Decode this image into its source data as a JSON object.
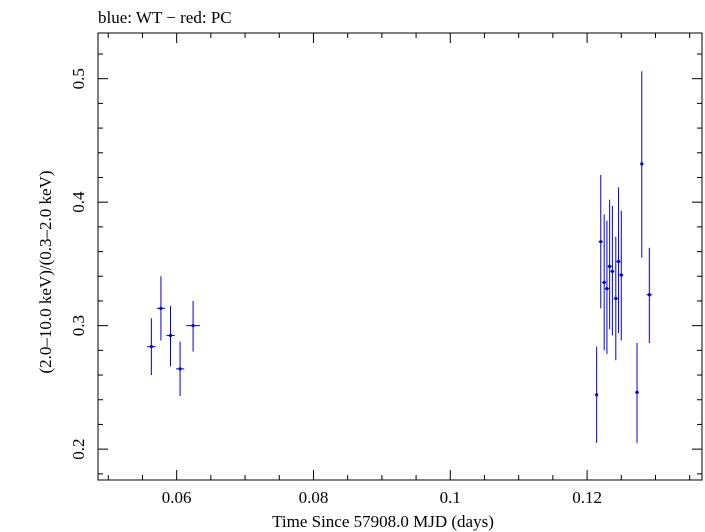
{
  "chart_data": {
    "type": "scatter",
    "title": "blue: WT − red: PC",
    "xlabel": "Time Since 57908.0 MJD (days)",
    "ylabel": "(2.0–10.0 keV)/(0.3–2.0 keV)",
    "xlim": [
      0.0485,
      0.1368
    ],
    "ylim": [
      0.175,
      0.537
    ],
    "x_ticks": [
      0.06,
      0.08,
      0.1,
      0.12
    ],
    "x_tick_labels": [
      "0.06",
      "0.08",
      "0.1",
      "0.12"
    ],
    "y_ticks": [
      0.2,
      0.3,
      0.4,
      0.5
    ],
    "y_tick_labels": [
      "0.2",
      "0.3",
      "0.4",
      "0.5"
    ],
    "grid": false,
    "series": [
      {
        "color": "#0000dd",
        "points": [
          {
            "x": 0.0563,
            "y": 0.283,
            "xerr": 0.0006,
            "ylo": 0.26,
            "yhi": 0.306
          },
          {
            "x": 0.0577,
            "y": 0.314,
            "xerr": 0.0006,
            "ylo": 0.288,
            "yhi": 0.34
          },
          {
            "x": 0.0591,
            "y": 0.292,
            "xerr": 0.0006,
            "ylo": 0.267,
            "yhi": 0.316
          },
          {
            "x": 0.0605,
            "y": 0.265,
            "xerr": 0.0006,
            "ylo": 0.243,
            "yhi": 0.287
          },
          {
            "x": 0.0624,
            "y": 0.3,
            "xerr": 0.001,
            "ylo": 0.279,
            "yhi": 0.32
          },
          {
            "x": 0.1214,
            "y": 0.244,
            "xerr": 0.0002,
            "ylo": 0.205,
            "yhi": 0.283
          },
          {
            "x": 0.122,
            "y": 0.368,
            "xerr": 0.0003,
            "ylo": 0.314,
            "yhi": 0.422
          },
          {
            "x": 0.1225,
            "y": 0.335,
            "xerr": 0.0003,
            "ylo": 0.28,
            "yhi": 0.39
          },
          {
            "x": 0.1229,
            "y": 0.33,
            "xerr": 0.0003,
            "ylo": 0.277,
            "yhi": 0.385
          },
          {
            "x": 0.1233,
            "y": 0.348,
            "xerr": 0.0003,
            "ylo": 0.297,
            "yhi": 0.402
          },
          {
            "x": 0.1237,
            "y": 0.344,
            "xerr": 0.0003,
            "ylo": 0.292,
            "yhi": 0.397
          },
          {
            "x": 0.1242,
            "y": 0.322,
            "xerr": 0.0003,
            "ylo": 0.272,
            "yhi": 0.372
          },
          {
            "x": 0.1246,
            "y": 0.352,
            "xerr": 0.0003,
            "ylo": 0.294,
            "yhi": 0.412
          },
          {
            "x": 0.125,
            "y": 0.341,
            "xerr": 0.0003,
            "ylo": 0.288,
            "yhi": 0.393
          },
          {
            "x": 0.1273,
            "y": 0.246,
            "xerr": 0.0003,
            "ylo": 0.205,
            "yhi": 0.286
          },
          {
            "x": 0.128,
            "y": 0.431,
            "xerr": 0.0002,
            "ylo": 0.355,
            "yhi": 0.506
          },
          {
            "x": 0.1291,
            "y": 0.325,
            "xerr": 0.0004,
            "ylo": 0.286,
            "yhi": 0.363
          }
        ]
      }
    ]
  }
}
